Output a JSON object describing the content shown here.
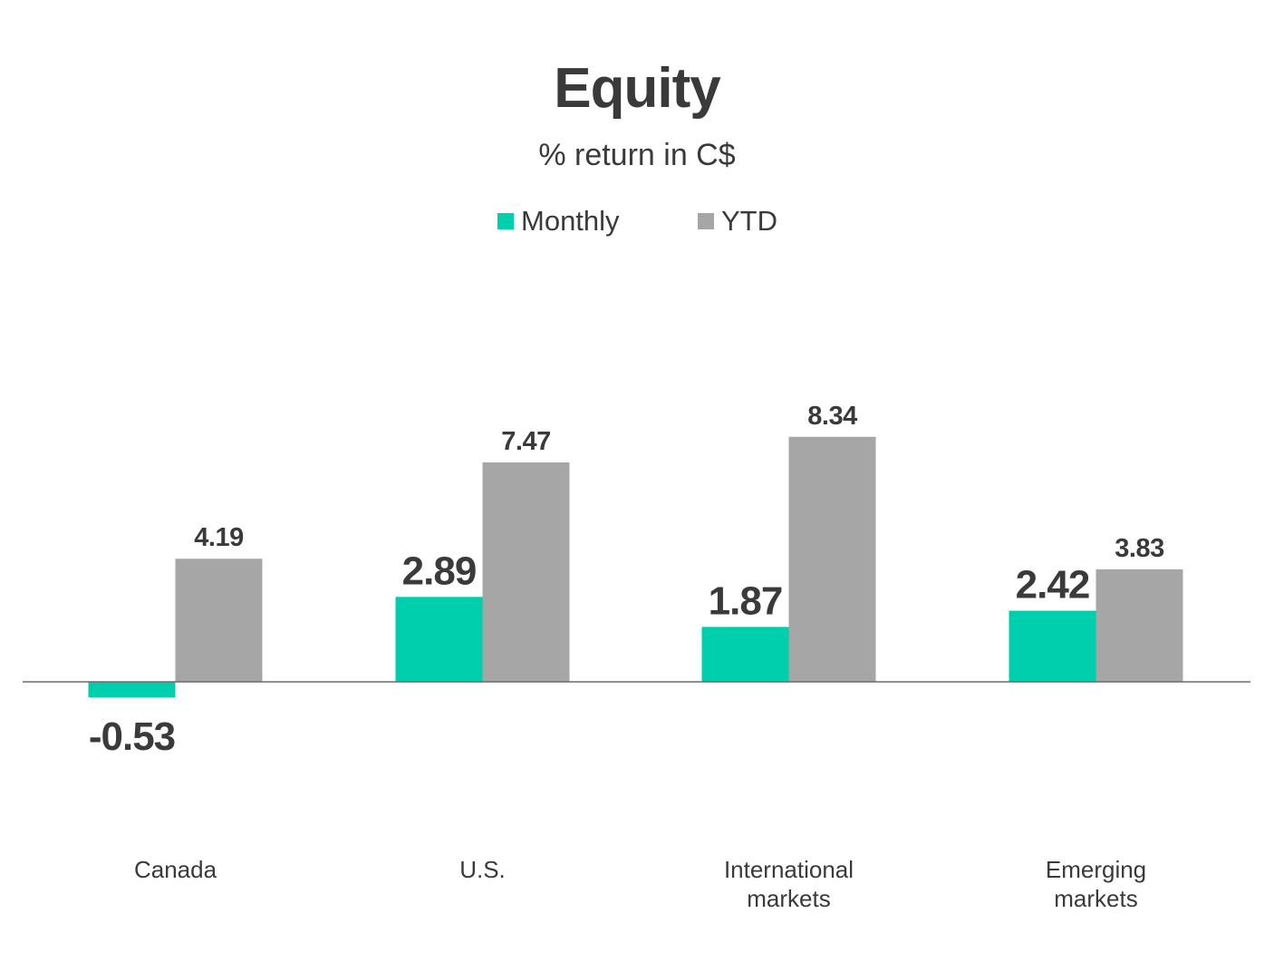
{
  "chart_data": {
    "type": "bar",
    "title": "Equity",
    "subtitle": "% return in C$",
    "categories": [
      [
        "Canada"
      ],
      [
        "U.S."
      ],
      [
        "International",
        "markets"
      ],
      [
        "Emerging",
        "markets"
      ]
    ],
    "series": [
      {
        "name": "Monthly",
        "color": "#00cfae",
        "values": [
          -0.53,
          2.89,
          1.87,
          2.42
        ]
      },
      {
        "name": "YTD",
        "color": "#a6a6a6",
        "values": [
          4.19,
          7.47,
          8.34,
          3.83
        ]
      }
    ],
    "data_labels": {
      "Monthly": [
        "-0.53",
        "2.89",
        "1.87",
        "2.42"
      ],
      "YTD": [
        "4.19",
        "7.47",
        "8.34",
        "3.83"
      ]
    },
    "ylim": [
      -1.5,
      9.5
    ],
    "legend_position": "top-center",
    "grid": false,
    "xlabel": "",
    "ylabel": ""
  }
}
